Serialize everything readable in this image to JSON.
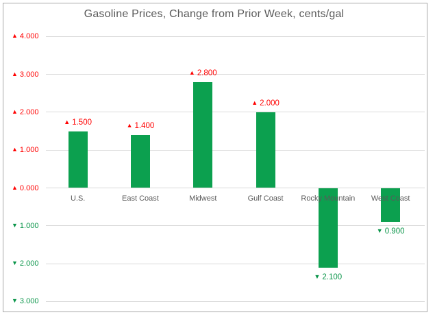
{
  "chart_data": {
    "type": "bar",
    "title": "Gasoline Prices, Change from Prior Week, cents/gal",
    "xlabel": "",
    "ylabel": "",
    "categories": [
      "U.S.",
      "East Coast",
      "Midwest",
      "Gulf Coast",
      "Rocky Mountain",
      "West Coast"
    ],
    "values": [
      1.5,
      1.4,
      2.8,
      2.0,
      -2.1,
      -0.9
    ],
    "data_labels": [
      {
        "marker": "▲",
        "text": "1.500",
        "tone": "up"
      },
      {
        "marker": "▲",
        "text": "1.400",
        "tone": "up"
      },
      {
        "marker": "▲",
        "text": "2.800",
        "tone": "up"
      },
      {
        "marker": "▲",
        "text": "2.000",
        "tone": "up"
      },
      {
        "marker": "▼",
        "text": "2.100",
        "tone": "down"
      },
      {
        "marker": "▼",
        "text": "0.900",
        "tone": "down"
      }
    ],
    "y_axis": {
      "ticks": [
        {
          "value": 4,
          "marker": "▲",
          "label": "4.000",
          "tone": "up"
        },
        {
          "value": 3,
          "marker": "▲",
          "label": "3.000",
          "tone": "up"
        },
        {
          "value": 2,
          "marker": "▲",
          "label": "2.000",
          "tone": "up"
        },
        {
          "value": 1,
          "marker": "▲",
          "label": "1.000",
          "tone": "up"
        },
        {
          "value": 0,
          "marker": "▲",
          "label": "0.000",
          "tone": "up"
        },
        {
          "value": -1,
          "marker": "▼",
          "label": "1.000",
          "tone": "down"
        },
        {
          "value": -2,
          "marker": "▼",
          "label": "2.000",
          "tone": "down"
        },
        {
          "value": -3,
          "marker": "▼",
          "label": "3.000",
          "tone": "down"
        }
      ]
    },
    "ylim": [
      -3.35,
      4.35
    ],
    "grid": true,
    "legend": "none",
    "colors": {
      "bar": "#0CA04F",
      "label_up": "#FF0000",
      "label_down": "#089448",
      "grid_line": "#D9D9D9",
      "title_text": "#595959",
      "category_text": "#595959",
      "frame_border": "#A6A6A6"
    }
  }
}
